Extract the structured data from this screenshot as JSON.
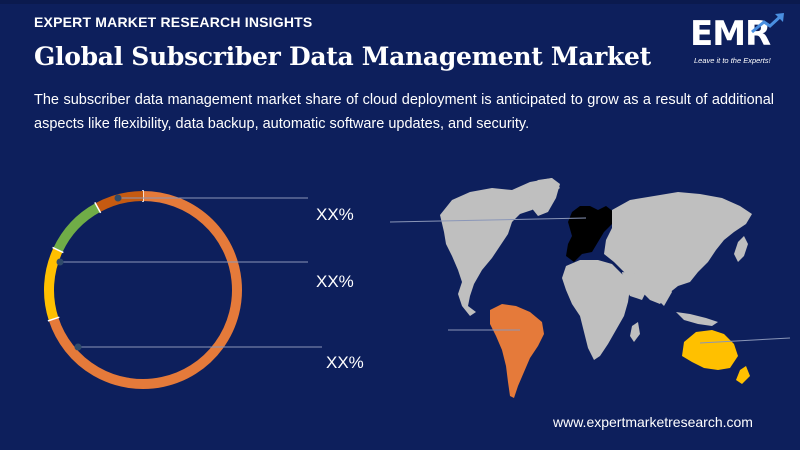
{
  "header": {
    "kicker": "EXPERT MARKET RESEARCH INSIGHTS",
    "title": "Global Subscriber Data Management Market",
    "description": "The subscriber data management market share of cloud deployment is anticipated to grow as a result of additional aspects like flexibility, data backup, automatic software updates, and security."
  },
  "logo": {
    "text": "EMR",
    "tagline": "Leave it to the Experts!"
  },
  "chart_data": {
    "type": "pie",
    "style": "donut",
    "title": "",
    "segments": [
      {
        "label": "",
        "value": 70,
        "color": "#e57a3a"
      },
      {
        "label": "",
        "value": 12,
        "color": "#ffc000"
      },
      {
        "label": "",
        "value": 10,
        "color": "#70ad47"
      },
      {
        "label": "",
        "value": 8,
        "color": "#c55a11"
      }
    ],
    "callouts": [
      "XX%",
      "XX%",
      "XX%"
    ]
  },
  "map": {
    "highlight_colors": {
      "europe": "#000000",
      "south_america": "#e57a3a",
      "oceania": "#ffc000",
      "other": "#bfbfbf"
    }
  },
  "footer": {
    "url": "www.expertmarketresearch.com"
  }
}
